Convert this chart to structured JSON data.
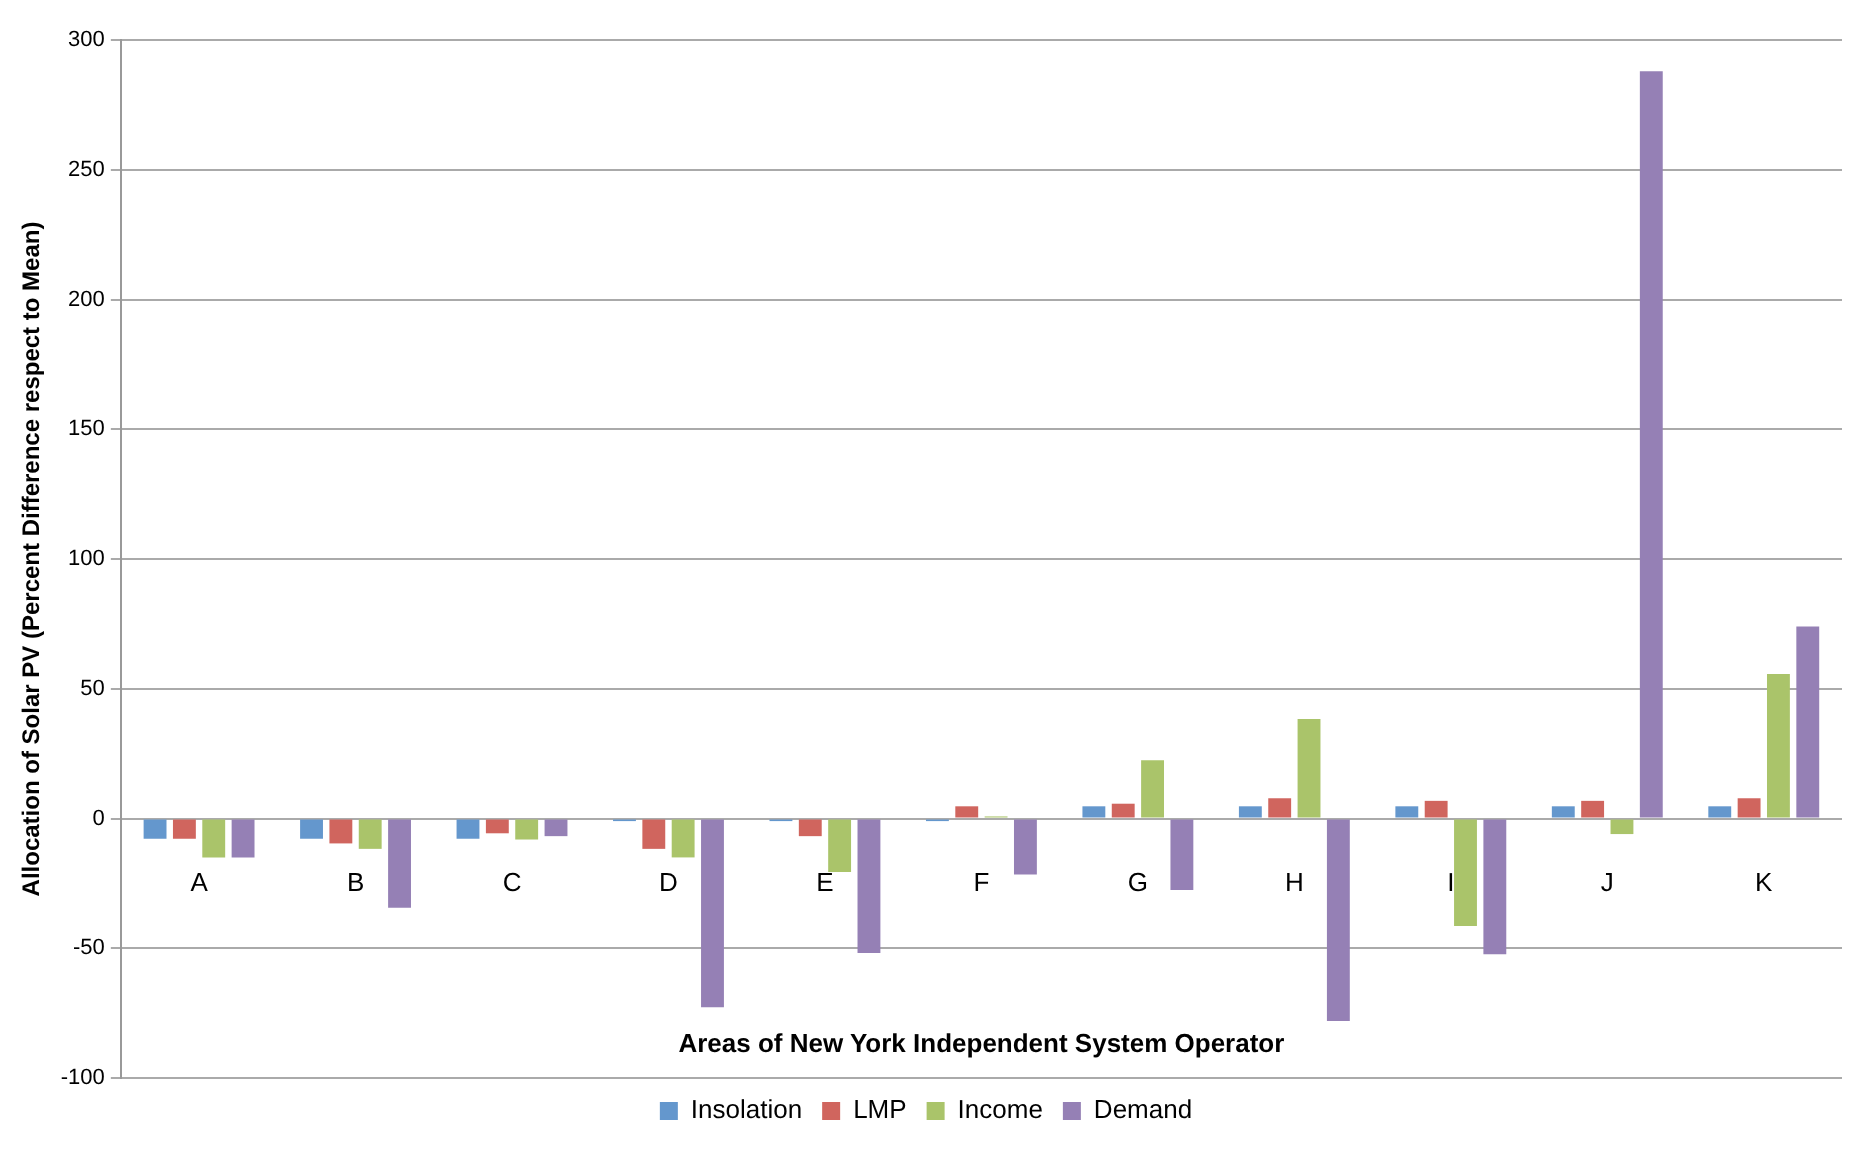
{
  "chart_data": {
    "type": "bar",
    "xlabel": "Areas of New York Independent System Operator",
    "ylabel": "Allocation of Solar PV (Percent Difference respect to Mean)",
    "categories": [
      "A",
      "B",
      "C",
      "D",
      "E",
      "F",
      "G",
      "H",
      "I",
      "J",
      "K"
    ],
    "series": [
      {
        "name": "Insolation",
        "color": "#6497cd",
        "values": [
          -7.8,
          -7.8,
          -7.8,
          -1,
          -1,
          -1,
          4.7,
          4.7,
          4.7,
          4.7,
          4.7
        ]
      },
      {
        "name": "LMP",
        "color": "#d0655e",
        "values": [
          -7.8,
          -9.6,
          -5.7,
          -11.7,
          -6.8,
          4.7,
          5.7,
          7.8,
          6.8,
          6.8,
          7.8
        ]
      },
      {
        "name": "Income",
        "color": "#aac46a",
        "values": [
          -15,
          -11.7,
          -8.1,
          -15,
          -20.6,
          0.8,
          22.4,
          38.3,
          -41.4,
          -6,
          55.7
        ]
      },
      {
        "name": "Demand",
        "color": "#9580b5",
        "values": [
          -15,
          -34.4,
          -6.8,
          -72.7,
          -51.8,
          -21.6,
          -27.6,
          -78,
          -52.3,
          288,
          74
        ]
      }
    ],
    "ylim": [
      -100,
      300
    ],
    "yticks": [
      -100,
      -50,
      0,
      50,
      100,
      150,
      200,
      250,
      300
    ],
    "grid": "y",
    "legend": "bottom"
  }
}
